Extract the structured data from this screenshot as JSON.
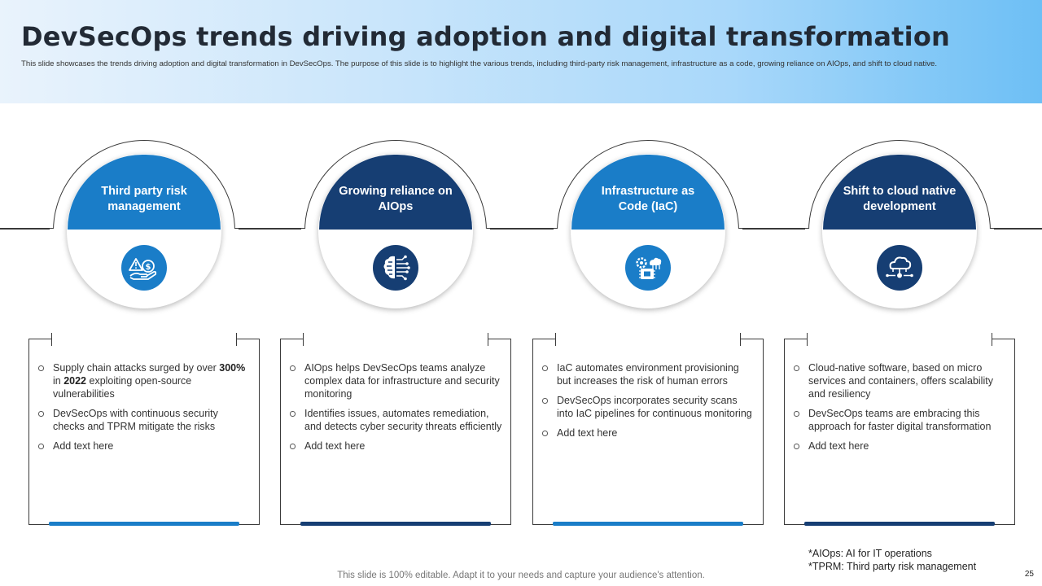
{
  "header": {
    "title": "DevSecOps trends driving adoption and digital transformation",
    "subtitle": "This slide showcases the trends driving adoption and digital transformation in DevSecOps. The purpose of this slide is to highlight the various trends, including third-party risk management, infrastructure as a code, growing reliance on AIOps, and shift to cloud native."
  },
  "colors": {
    "primary": "#1a7dc8",
    "dark": "#163e73",
    "header_start": "#e9f3fc",
    "header_end": "#6dbff5"
  },
  "trends": [
    {
      "title": "Third party risk management",
      "icon": "hand-warning-dollar-icon",
      "bullets": {
        "b1_pre": "Supply chain attacks surged by over ",
        "b1_bold1": "300%",
        "b1_mid": " in ",
        "b1_bold2": "2022",
        "b1_post": " exploiting open-source vulnerabilities",
        "b2": "DevSecOps with continuous security checks and TPRM mitigate the risks",
        "b3": "Add text here"
      }
    },
    {
      "title": "Growing reliance on AIOps",
      "icon": "ai-brain-circuit-icon",
      "bullets": [
        "AIOps helps DevSecOps teams analyze complex data for infrastructure and security monitoring",
        "Identifies issues, automates remediation, and detects cyber security threats efficiently",
        "Add text here"
      ]
    },
    {
      "title": "Infrastructure as Code (IaC)",
      "icon": "cloud-gear-chip-icon",
      "bullets": [
        "IaC automates environment provisioning but increases the risk of human errors",
        "DevSecOps incorporates security scans into IaC pipelines for continuous monitoring",
        "Add text here"
      ]
    },
    {
      "title": "Shift to cloud native development",
      "icon": "cloud-network-icon",
      "bullets": [
        "Cloud-native software, based on micro services and containers, offers scalability and resiliency",
        "DevSecOps teams are embracing this approach for faster digital transformation",
        "Add text here"
      ]
    }
  ],
  "footnotes": {
    "aiops": "*AIOps: AI for IT operations",
    "tprm": "*TPRM: Third party risk management"
  },
  "footer": "This slide is 100% editable. Adapt it to your needs and capture your audience's attention.",
  "page_number": "25"
}
